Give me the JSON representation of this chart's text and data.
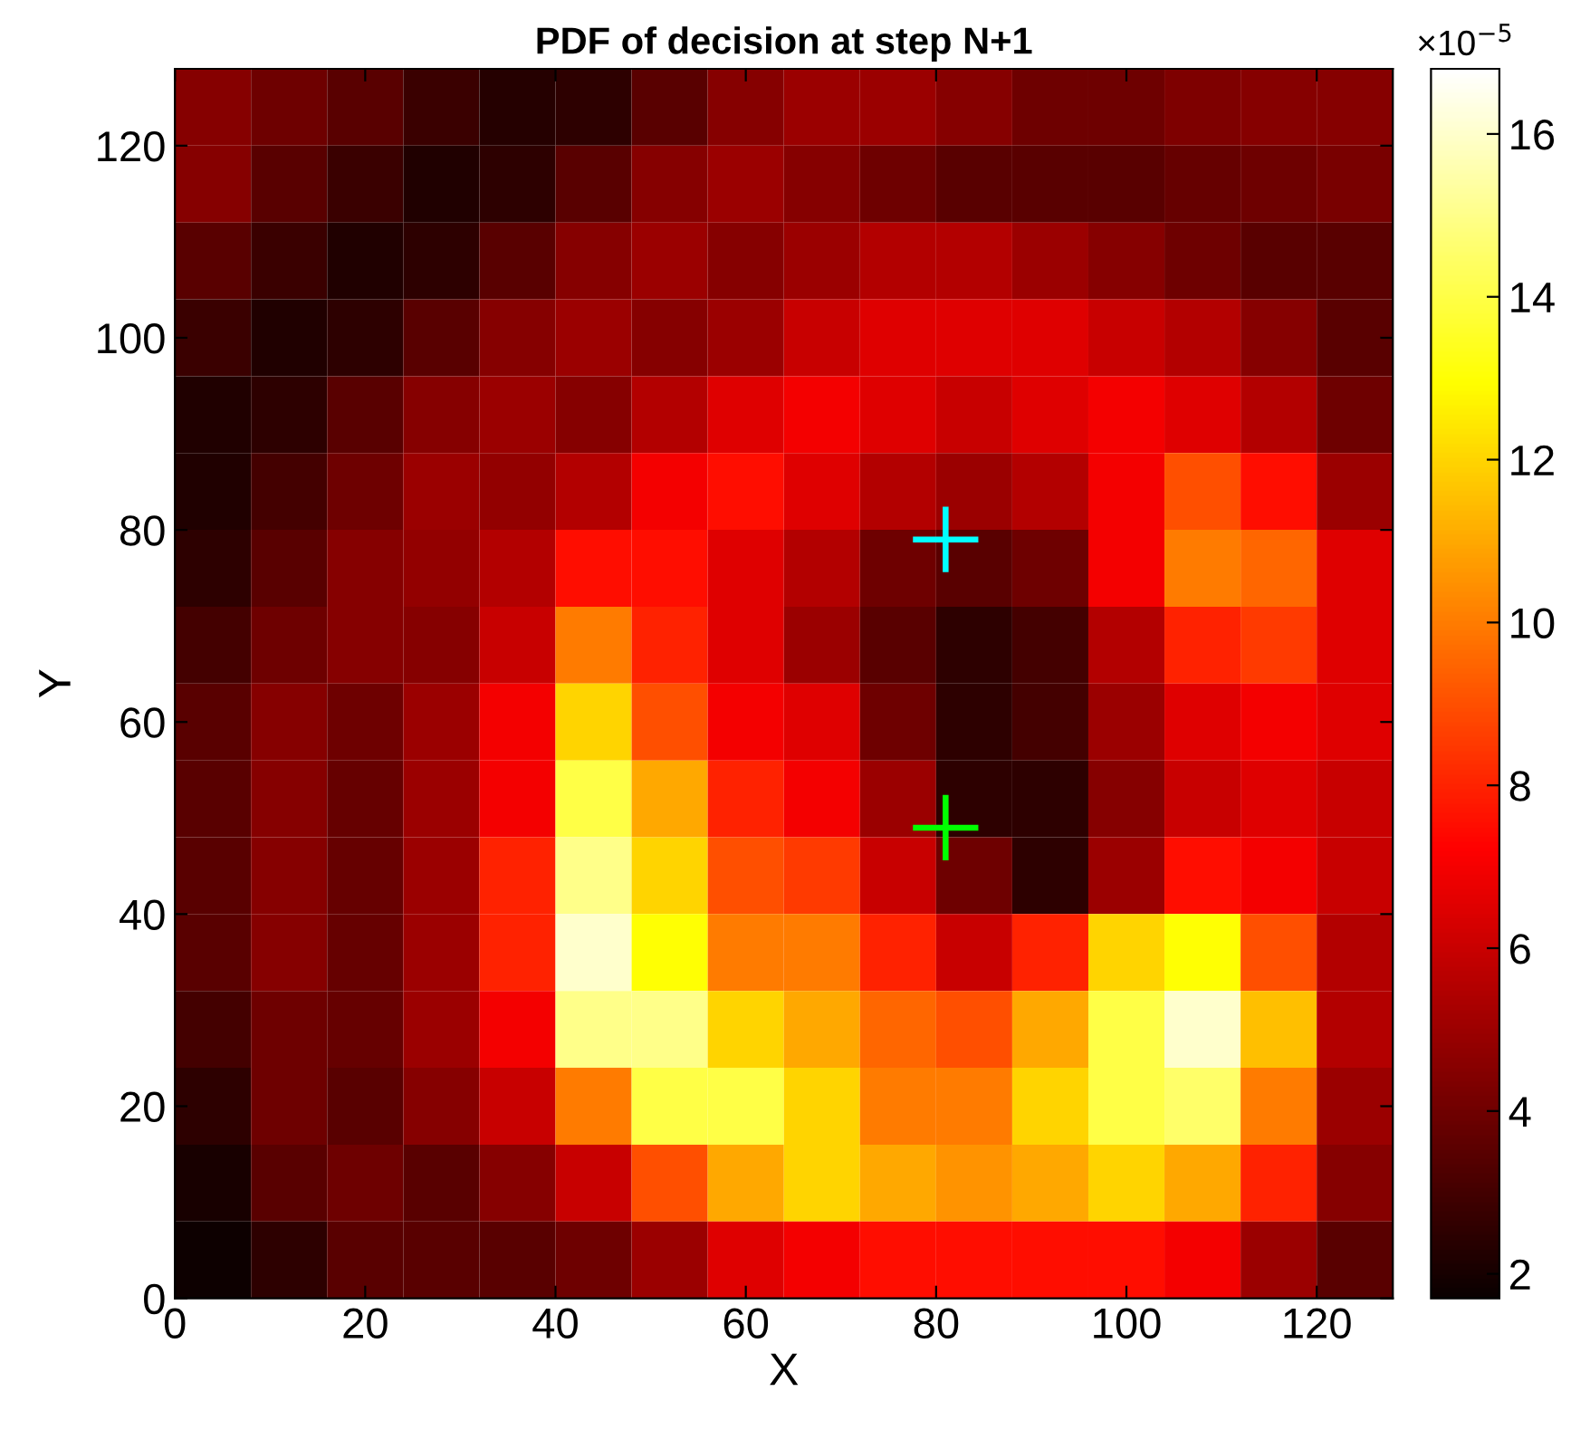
{
  "chart_data": {
    "type": "heatmap",
    "title": "PDF of decision at step N+1",
    "xlabel": "X",
    "ylabel": "Y",
    "clabel": "×10$^{−5}$",
    "x": [
      4,
      12,
      20,
      28,
      36,
      44,
      52,
      60,
      68,
      76,
      84,
      92,
      100,
      108,
      116,
      124
    ],
    "y": [
      124,
      116,
      108,
      100,
      92,
      84,
      76,
      68,
      60,
      52,
      44,
      36,
      28,
      20,
      12,
      4
    ],
    "xlim": [
      0,
      128
    ],
    "ylim": [
      0,
      128
    ],
    "xticks": [
      0,
      20,
      40,
      60,
      80,
      100,
      120
    ],
    "yticks": [
      0,
      20,
      40,
      60,
      80,
      100,
      120
    ],
    "clim": [
      1.7,
      16.8
    ],
    "cticks": [
      2,
      4,
      6,
      8,
      10,
      12,
      14,
      16
    ],
    "cells": [
      [
        4.5,
        4,
        3.5,
        2.8,
        2.3,
        2.5,
        3.5,
        4.5,
        5,
        5,
        4.5,
        4,
        4,
        4.3,
        4.5,
        4.5
      ],
      [
        4.5,
        3.5,
        2.8,
        2.2,
        2.5,
        3.5,
        4.5,
        5,
        4.5,
        4,
        3.5,
        3.5,
        3.5,
        3.8,
        4,
        4.2
      ],
      [
        3.5,
        2.8,
        2.2,
        2.5,
        3.5,
        4.5,
        5,
        4.5,
        5,
        5.5,
        5.5,
        5,
        4.5,
        4,
        3.5,
        3.5
      ],
      [
        2.8,
        2.2,
        2.5,
        3.5,
        4.5,
        5,
        4.5,
        5,
        6,
        6.5,
        6.5,
        6.5,
        6,
        5.5,
        4.5,
        3.5
      ],
      [
        2.2,
        2.5,
        3.5,
        4.5,
        5,
        4.5,
        5.5,
        6.5,
        7,
        6.5,
        6,
        6.5,
        7,
        6.5,
        5.5,
        4
      ],
      [
        2.2,
        3,
        4,
        5,
        4.8,
        5.5,
        7,
        7.5,
        6.5,
        5.5,
        5,
        5.5,
        7,
        9,
        7.5,
        5
      ],
      [
        2.5,
        3.5,
        4.5,
        4.8,
        5.5,
        7.5,
        7.5,
        6.5,
        5.5,
        4,
        3.5,
        4,
        7,
        10,
        9.5,
        6.5
      ],
      [
        3,
        4,
        4.5,
        4.5,
        6,
        10,
        8,
        6.5,
        5,
        3.5,
        2.5,
        3,
        5.5,
        8,
        8.5,
        6.5
      ],
      [
        3.5,
        4.5,
        4,
        5,
        7,
        12,
        9,
        7,
        6.5,
        4,
        2.5,
        3,
        5,
        6.5,
        7,
        6.5
      ],
      [
        3.5,
        4.5,
        3.8,
        5,
        7,
        14,
        11,
        8,
        7,
        5,
        2.5,
        2.5,
        4.5,
        6,
        6.5,
        6
      ],
      [
        3.5,
        4.5,
        3.8,
        5,
        8,
        15,
        12,
        9,
        8.5,
        6,
        4,
        2.5,
        5,
        7.5,
        7,
        6
      ],
      [
        3.5,
        4.5,
        3.8,
        5,
        8,
        16,
        13,
        10,
        10,
        8,
        6,
        8,
        12,
        13,
        9,
        5.5
      ],
      [
        3,
        4,
        3.8,
        5,
        7,
        15,
        15,
        12,
        11,
        9.5,
        9,
        11,
        14,
        16,
        11.5,
        5.5
      ],
      [
        2.5,
        4,
        3.5,
        4.5,
        6,
        10,
        14,
        14,
        12,
        10,
        10,
        12,
        14,
        14.5,
        10,
        5
      ],
      [
        2,
        3.5,
        4,
        3.5,
        4.5,
        6,
        9,
        11,
        12,
        11,
        10.5,
        11,
        12,
        11,
        8,
        4.5
      ],
      [
        1.8,
        2.5,
        3.5,
        3.5,
        3.5,
        4,
        5,
        6.5,
        7,
        7.5,
        7.5,
        7.5,
        7.5,
        7,
        5,
        3.5
      ]
    ],
    "series": [
      {
        "type": "scatter",
        "marker": "cross",
        "color": "#00ffff",
        "x": [
          81
        ],
        "values": [
          79
        ]
      },
      {
        "type": "scatter",
        "marker": "cross",
        "color": "#00ff00",
        "x": [
          81
        ],
        "values": [
          49
        ]
      }
    ],
    "grid": false,
    "legend": false
  }
}
